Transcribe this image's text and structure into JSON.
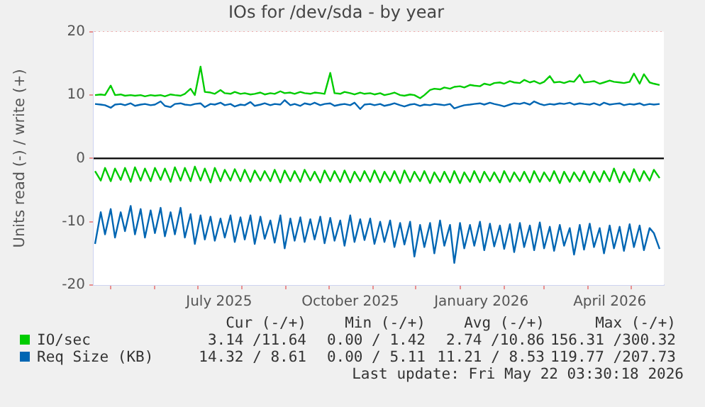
{
  "chart_data": {
    "type": "line",
    "title": "IOs for /dev/sda - by year",
    "ylabel": "Units read (-) / write (+)",
    "x": [
      "2025-04-20",
      "2025-04-24",
      "2025-04-27",
      "2025-05-01",
      "2025-05-04",
      "2025-05-08",
      "2025-05-11",
      "2025-05-15",
      "2025-05-18",
      "2025-05-22",
      "2025-05-25",
      "2025-05-29",
      "2025-06-01",
      "2025-06-05",
      "2025-06-08",
      "2025-06-12",
      "2025-06-15",
      "2025-06-19",
      "2025-06-22",
      "2025-06-26",
      "2025-06-29",
      "2025-07-03",
      "2025-07-06",
      "2025-07-10",
      "2025-07-13",
      "2025-07-17",
      "2025-07-20",
      "2025-07-24",
      "2025-07-27",
      "2025-07-31",
      "2025-08-03",
      "2025-08-07",
      "2025-08-10",
      "2025-08-14",
      "2025-08-17",
      "2025-08-21",
      "2025-08-24",
      "2025-08-28",
      "2025-08-31",
      "2025-09-04",
      "2025-09-07",
      "2025-09-11",
      "2025-09-14",
      "2025-09-18",
      "2025-09-21",
      "2025-09-25",
      "2025-09-28",
      "2025-10-02",
      "2025-10-05",
      "2025-10-09",
      "2025-10-12",
      "2025-10-16",
      "2025-10-19",
      "2025-10-23",
      "2025-10-26",
      "2025-10-30",
      "2025-11-02",
      "2025-11-06",
      "2025-11-09",
      "2025-11-13",
      "2025-11-16",
      "2025-11-20",
      "2025-11-23",
      "2025-11-27",
      "2025-11-30",
      "2025-12-04",
      "2025-12-07",
      "2025-12-11",
      "2025-12-14",
      "2025-12-18",
      "2025-12-21",
      "2025-12-25",
      "2025-12-28",
      "2026-01-01",
      "2026-01-04",
      "2026-01-08",
      "2026-01-11",
      "2026-01-15",
      "2026-01-18",
      "2026-01-22",
      "2026-01-25",
      "2026-01-29",
      "2026-02-01",
      "2026-02-05",
      "2026-02-08",
      "2026-02-12",
      "2026-02-15",
      "2026-02-19",
      "2026-02-22",
      "2026-02-26",
      "2026-03-01",
      "2026-03-05",
      "2026-03-08",
      "2026-03-12",
      "2026-03-15",
      "2026-03-19",
      "2026-03-22",
      "2026-03-26",
      "2026-03-29",
      "2026-04-02",
      "2026-04-05",
      "2026-04-09",
      "2026-04-12",
      "2026-04-16",
      "2026-04-19",
      "2026-04-23",
      "2026-04-26",
      "2026-04-30",
      "2026-05-03",
      "2026-05-07",
      "2026-05-10",
      "2026-05-14",
      "2026-05-17",
      "2026-05-21"
    ],
    "series": [
      {
        "color": "#00cc00",
        "values": [
          -2.0,
          -3.5,
          -1.5,
          -3.6,
          -1.6,
          -3.4,
          -1.5,
          -3.7,
          -1.4,
          -3.5,
          -1.6,
          -3.6,
          -1.5,
          -3.4,
          -1.6,
          -3.7,
          -1.4,
          -3.5,
          -1.5,
          -3.6,
          -1.3,
          -3.5,
          -1.6,
          -3.8,
          -1.5,
          -3.6,
          -1.8,
          -3.5,
          -1.7,
          -3.6,
          -1.8,
          -3.7,
          -1.9,
          -3.5,
          -2.0,
          -3.6,
          -1.8,
          -3.8,
          -1.9,
          -3.6,
          -2.0,
          -3.7,
          -1.8,
          -3.5,
          -2.1,
          -3.8,
          -1.9,
          -3.6,
          -2.0,
          -3.7,
          -1.9,
          -3.8,
          -2.1,
          -3.6,
          -2.0,
          -3.7,
          -1.9,
          -3.8,
          -2.1,
          -3.6,
          -2.0,
          -3.9,
          -1.9,
          -3.7,
          -2.1,
          -3.6,
          -2.0,
          -3.9,
          -2.2,
          -3.7,
          -2.1,
          -3.8,
          -2.0,
          -3.9,
          -2.2,
          -3.7,
          -2.0,
          -3.8,
          -2.1,
          -3.6,
          -2.2,
          -3.8,
          -2.0,
          -3.7,
          -2.2,
          -3.6,
          -2.1,
          -3.8,
          -2.0,
          -3.7,
          -2.2,
          -3.6,
          -2.0,
          -3.9,
          -2.1,
          -3.7,
          -2.2,
          -3.6,
          -2.0,
          -3.8,
          -2.1,
          -3.7,
          -2.0,
          -3.6,
          -1.6,
          -3.8,
          -2.1,
          -3.7,
          -1.7,
          -3.6,
          -2.0,
          -3.5,
          -1.8,
          -3.1
        ]
      },
      {
        "name": "IO/sec",
        "color": "#00cc00",
        "values": [
          10.0,
          10.1,
          10.0,
          11.5,
          10.0,
          10.1,
          9.9,
          10.0,
          9.9,
          10.0,
          9.8,
          10.0,
          9.9,
          10.0,
          9.8,
          10.1,
          10.0,
          9.9,
          10.2,
          11.0,
          10.0,
          14.5,
          10.5,
          10.4,
          10.2,
          10.8,
          10.3,
          10.2,
          10.5,
          10.2,
          10.3,
          10.1,
          10.2,
          10.4,
          10.1,
          10.3,
          10.2,
          10.6,
          10.3,
          10.4,
          10.2,
          10.5,
          10.3,
          10.2,
          10.4,
          10.3,
          10.2,
          13.5,
          10.3,
          10.2,
          10.5,
          10.3,
          10.1,
          10.4,
          10.2,
          10.3,
          10.1,
          10.3,
          10.0,
          10.2,
          10.4,
          10.0,
          9.9,
          10.1,
          10.0,
          9.5,
          10.0,
          10.8,
          11.0,
          10.9,
          11.2,
          11.0,
          11.3,
          11.4,
          11.2,
          11.6,
          11.5,
          11.4,
          11.8,
          11.6,
          11.9,
          12.0,
          11.8,
          12.2,
          12.0,
          11.9,
          12.4,
          12.0,
          12.2,
          11.8,
          12.1,
          13.0,
          12.0,
          12.1,
          11.9,
          12.2,
          12.1,
          13.2,
          12.0,
          12.1,
          12.2,
          11.8,
          12.0,
          12.3,
          12.1,
          12.0,
          11.9,
          12.1,
          13.4,
          11.8,
          13.3,
          12.0,
          11.8,
          11.6
        ]
      },
      {
        "color": "#0066b3",
        "values": [
          -13.5,
          -8.5,
          -12.0,
          -8.0,
          -12.5,
          -8.5,
          -11.5,
          -7.5,
          -12.0,
          -8.0,
          -12.5,
          -8.2,
          -11.8,
          -7.8,
          -12.3,
          -8.5,
          -12.0,
          -7.8,
          -12.5,
          -8.8,
          -13.5,
          -9.0,
          -12.8,
          -9.2,
          -13.0,
          -9.5,
          -12.5,
          -9.0,
          -13.2,
          -9.3,
          -12.8,
          -9.0,
          -13.5,
          -9.2,
          -12.7,
          -9.8,
          -13.3,
          -9.0,
          -14.2,
          -9.5,
          -13.0,
          -9.3,
          -13.2,
          -9.6,
          -12.8,
          -9.2,
          -13.4,
          -9.4,
          -13.0,
          -9.8,
          -13.8,
          -9.0,
          -13.2,
          -9.6,
          -12.9,
          -9.5,
          -13.5,
          -10.0,
          -13.2,
          -9.8,
          -14.0,
          -10.2,
          -13.6,
          -10.0,
          -15.5,
          -10.5,
          -14.0,
          -10.2,
          -15.0,
          -9.8,
          -13.8,
          -10.5,
          -16.5,
          -10.2,
          -14.2,
          -10.5,
          -13.8,
          -10.0,
          -14.5,
          -10.3,
          -13.9,
          -10.6,
          -14.3,
          -10.4,
          -14.8,
          -10.2,
          -14.0,
          -10.6,
          -14.5,
          -10.1,
          -14.2,
          -10.8,
          -14.6,
          -10.5,
          -13.8,
          -11.0,
          -15.2,
          -10.5,
          -14.4,
          -10.3,
          -14.0,
          -11.0,
          -15.0,
          -10.6,
          -14.2,
          -10.8,
          -14.6,
          -10.4,
          -14.0,
          -10.6,
          -14.5,
          -11.0,
          -11.8,
          -14.3
        ]
      },
      {
        "name": "Req Size (KB)",
        "color": "#0066b3",
        "values": [
          8.6,
          8.5,
          8.4,
          8.0,
          8.5,
          8.6,
          8.4,
          8.7,
          8.3,
          8.5,
          8.6,
          8.4,
          8.5,
          9.0,
          8.3,
          8.1,
          8.6,
          8.7,
          8.5,
          8.4,
          8.6,
          8.7,
          8.1,
          8.6,
          8.5,
          8.8,
          8.4,
          8.6,
          8.2,
          8.5,
          8.4,
          8.9,
          8.3,
          8.5,
          8.7,
          8.4,
          8.6,
          8.5,
          9.2,
          8.4,
          8.6,
          8.3,
          8.7,
          8.5,
          8.8,
          8.4,
          8.6,
          8.7,
          8.3,
          8.5,
          8.6,
          8.4,
          8.8,
          7.8,
          8.5,
          8.6,
          8.4,
          8.6,
          8.3,
          8.5,
          8.7,
          8.4,
          8.2,
          8.5,
          8.6,
          8.3,
          8.5,
          8.4,
          8.6,
          8.5,
          8.4,
          8.6,
          7.9,
          8.2,
          8.4,
          8.5,
          8.6,
          8.7,
          8.5,
          8.8,
          8.6,
          8.4,
          8.2,
          8.5,
          8.7,
          8.6,
          8.8,
          8.5,
          9.0,
          8.6,
          8.4,
          8.6,
          8.5,
          8.7,
          8.6,
          8.8,
          8.5,
          8.7,
          8.6,
          8.5,
          8.7,
          8.4,
          8.8,
          8.5,
          8.6,
          8.7,
          8.4,
          8.6,
          8.5,
          8.7,
          8.4,
          8.6,
          8.5,
          8.6
        ]
      }
    ],
    "xlim": [
      "2025-04-19",
      "2026-05-24"
    ],
    "xticks": [
      {
        "value": "2025-05-01",
        "label": null
      },
      {
        "value": "2025-06-01",
        "label": null
      },
      {
        "value": "2025-07-01",
        "label": null
      },
      {
        "value": "2025-07-16",
        "label": "July 2025"
      },
      {
        "value": "2025-08-01",
        "label": null
      },
      {
        "value": "2025-09-01",
        "label": null
      },
      {
        "value": "2025-10-01",
        "label": null
      },
      {
        "value": "2025-10-16",
        "label": "October 2025"
      },
      {
        "value": "2025-11-01",
        "label": null
      },
      {
        "value": "2025-12-01",
        "label": null
      },
      {
        "value": "2026-01-01",
        "label": null
      },
      {
        "value": "2026-01-16",
        "label": "January 2026"
      },
      {
        "value": "2026-02-01",
        "label": null
      },
      {
        "value": "2026-03-01",
        "label": null
      },
      {
        "value": "2026-04-01",
        "label": null
      },
      {
        "value": "2026-04-16",
        "label": "April 2026"
      },
      {
        "value": "2026-05-01",
        "label": null
      }
    ],
    "ylim": [
      -20,
      20
    ],
    "yticks": [
      -20,
      -10,
      0,
      10,
      20
    ],
    "ref_lines": [
      {
        "axis": "y",
        "value": 0,
        "color": "#000000"
      }
    ],
    "grid": true,
    "legend": "bottom",
    "annotations": [
      "Cur (-/+)",
      "Min (-/+)",
      "Avg (-/+)",
      "Max (-/+)",
      "3.14 /11.64",
      "0.00 / 1.42",
      "2.74 /10.86",
      "156.31 /300.32",
      "14.32 / 8.61",
      "0.00 / 5.11",
      "11.21 / 8.53",
      "119.77 /207.73",
      "Last update: Fri May 22 03:30:18 2026"
    ]
  }
}
